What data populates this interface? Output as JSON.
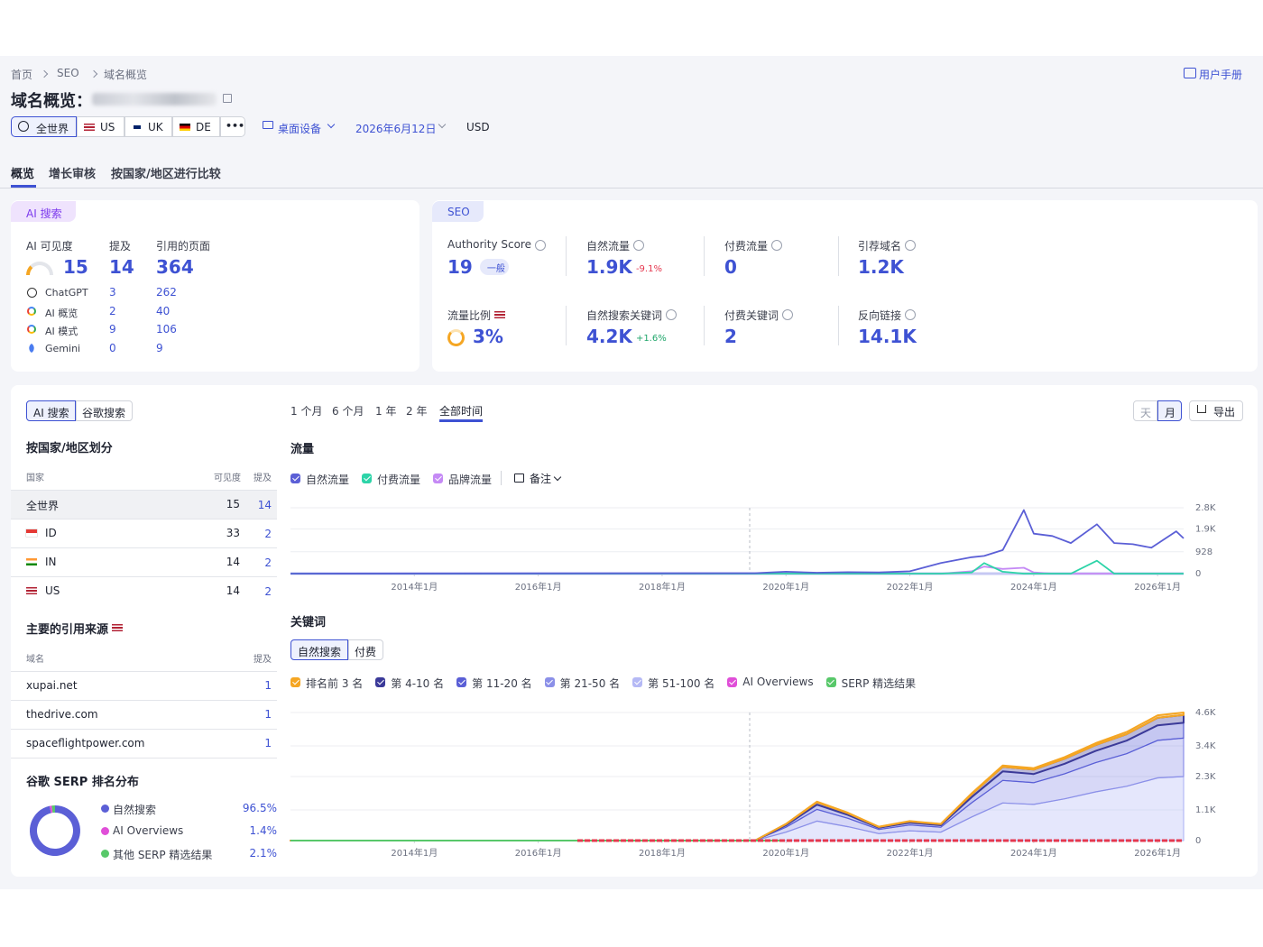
{
  "breadcrumb": [
    "首页",
    "SEO",
    "域名概览"
  ],
  "user_manual": "用户手册",
  "title": "域名概览：",
  "filters": {
    "regions": [
      "全世界",
      "US",
      "UK",
      "DE"
    ],
    "more": "•••",
    "device": "桌面设备",
    "date": "2026年6月12日",
    "currency": "USD"
  },
  "tabs": [
    "概览",
    "增长审核",
    "按国家/地区进行比较"
  ],
  "ai_card": {
    "label": "AI 搜索",
    "headers": [
      "AI 可见度",
      "提及",
      "引用的页面"
    ],
    "totals": [
      15,
      14,
      364
    ],
    "rows": [
      {
        "name": "ChatGPT",
        "mentions": 3,
        "pages": 262
      },
      {
        "name": "AI 概览",
        "mentions": 2,
        "pages": 40
      },
      {
        "name": "AI 模式",
        "mentions": 9,
        "pages": 106
      },
      {
        "name": "Gemini",
        "mentions": 0,
        "pages": 9
      }
    ]
  },
  "seo_card": {
    "label": "SEO",
    "metrics": [
      {
        "label": "Authority Score",
        "value": 19,
        "badge": "一般"
      },
      {
        "label": "自然流量",
        "value": "1.9K",
        "change": "-9.1%"
      },
      {
        "label": "付费流量",
        "value": 0
      },
      {
        "label": "引荐域名",
        "value": "1.2K"
      },
      {
        "label": "流量比例",
        "value": "3%"
      },
      {
        "label": "自然搜索关键词",
        "value": "4.2K",
        "change": "+1.6%"
      },
      {
        "label": "付费关键词",
        "value": 2
      },
      {
        "label": "反向链接",
        "value": "14.1K"
      }
    ]
  },
  "left": {
    "toggle": [
      "AI 搜索",
      "谷歌搜索"
    ],
    "country_title": "按国家/地区划分",
    "country_headers": [
      "国家",
      "可见度",
      "提及"
    ],
    "countries": [
      [
        "全世界",
        15,
        14
      ],
      [
        "ID",
        33,
        2
      ],
      [
        "IN",
        14,
        2
      ],
      [
        "US",
        14,
        2
      ]
    ],
    "sources_title": "主要的引用来源",
    "sources_headers": [
      "域名",
      "提及"
    ],
    "sources": [
      [
        "xupai.net",
        1
      ],
      [
        "thedrive.com",
        1
      ],
      [
        "spaceflightpower.com",
        1
      ]
    ],
    "serp_title": "谷歌 SERP 排名分布"
  },
  "periods": [
    "1 个月",
    "6 个月",
    "1 年",
    "2 年",
    "全部时间"
  ],
  "view": [
    "天",
    "月"
  ],
  "export": "导出",
  "chart_data": [
    {
      "type": "line",
      "title": "流量",
      "notes": "备注",
      "x": [
        2012,
        2019.5,
        2020,
        2020.5,
        2021,
        2021.5,
        2022,
        2022.5,
        2023,
        2023.2,
        2023.5,
        2023.84,
        2024,
        2024.3,
        2024.6,
        2025.02,
        2025.3,
        2025.6,
        2025.9,
        2026.3,
        2026.42
      ],
      "series": [
        {
          "name": "自然流量",
          "color": "#5b5fd6",
          "values": [
            0,
            20,
            80,
            40,
            60,
            50,
            100,
            450,
            700,
            750,
            1000,
            2700,
            1700,
            1600,
            1300,
            2100,
            1300,
            1250,
            1100,
            1800,
            1500
          ]
        },
        {
          "name": "付费流量",
          "color": "#2dd4a8",
          "values": [
            0,
            0,
            0,
            0,
            0,
            0,
            0,
            0,
            50,
            450,
            80,
            0,
            0,
            0,
            0,
            550,
            0,
            0,
            0,
            0,
            0
          ]
        },
        {
          "name": "品牌流量",
          "color": "#c58af5",
          "values": [
            0,
            0,
            0,
            0,
            0,
            0,
            0,
            0,
            100,
            300,
            200,
            250,
            50,
            0,
            0,
            0,
            0,
            0,
            0,
            0,
            0
          ]
        }
      ],
      "xlim": [
        2012,
        2026.42
      ],
      "xticks": [
        {
          "value": 2014,
          "label": "2014年1月"
        },
        {
          "value": 2016,
          "label": "2016年1月"
        },
        {
          "value": 2018,
          "label": "2018年1月"
        },
        {
          "value": 2020,
          "label": "2020年1月"
        },
        {
          "value": 2022,
          "label": "2022年1月"
        },
        {
          "value": 2024,
          "label": "2024年1月"
        },
        {
          "value": 2026,
          "label": "2026年1月"
        }
      ],
      "ylim": [
        0,
        2800
      ],
      "yticks": [
        0,
        928,
        {
          "value": 1900,
          "label": "1.9K"
        },
        {
          "value": 2800,
          "label": "2.8K"
        }
      ],
      "grid": true
    },
    {
      "type": "area",
      "stacked": true,
      "title": "关键词",
      "tabs": [
        "自然搜索",
        "付费"
      ],
      "x": [
        2012,
        2017.5,
        2019.5,
        2020,
        2020.5,
        2021,
        2021.5,
        2022,
        2022.5,
        2023,
        2023.5,
        2024,
        2024.5,
        2025,
        2025.5,
        2026,
        2026.42
      ],
      "series": [
        {
          "name": "排名前 3 名",
          "color": "#f5a623",
          "values": [
            0,
            0,
            0,
            12,
            28,
            20,
            10,
            14,
            12,
            34,
            54,
            52,
            60,
            70,
            78,
            90,
            92
          ]
        },
        {
          "name": "第 4-10 名",
          "color": "#3b3a99",
          "values": [
            0,
            0,
            0,
            36,
            84,
            60,
            30,
            42,
            36,
            102,
            162,
            156,
            180,
            210,
            234,
            270,
            276
          ]
        },
        {
          "name": "第 11-20 名",
          "color": "#5a5fd6",
          "values": [
            0,
            0,
            0,
            72,
            168,
            120,
            60,
            84,
            72,
            204,
            324,
            312,
            360,
            420,
            468,
            540,
            552
          ]
        },
        {
          "name": "第 21-50 名",
          "color": "#8b90e8",
          "values": [
            0,
            0,
            0,
            180,
            420,
            300,
            150,
            210,
            180,
            510,
            810,
            780,
            900,
            1050,
            1170,
            1350,
            1380
          ]
        },
        {
          "name": "第 51-100 名",
          "color": "#b5b9f5",
          "values": [
            0,
            0,
            0,
            300,
            700,
            500,
            250,
            350,
            300,
            850,
            1350,
            1300,
            1500,
            1750,
            1950,
            2250,
            2300
          ]
        }
      ],
      "legend_extra": [
        {
          "name": "AI Overviews",
          "color": "#e04fd8"
        },
        {
          "name": "SERP 精选结果",
          "color": "#58c86a"
        }
      ],
      "xlim": [
        2012,
        2026.42
      ],
      "xticks": [
        {
          "value": 2014,
          "label": "2014年1月"
        },
        {
          "value": 2016,
          "label": "2016年1月"
        },
        {
          "value": 2018,
          "label": "2018年1月"
        },
        {
          "value": 2020,
          "label": "2020年1月"
        },
        {
          "value": 2022,
          "label": "2022年1月"
        },
        {
          "value": 2024,
          "label": "2024年1月"
        },
        {
          "value": 2026,
          "label": "2026年1月"
        }
      ],
      "ylim": [
        0,
        4600
      ],
      "yticks": [
        0,
        {
          "value": 1100,
          "label": "1.1K"
        },
        {
          "value": 2300,
          "label": "2.3K"
        },
        {
          "value": 3400,
          "label": "3.4K"
        },
        {
          "value": 4600,
          "label": "4.6K"
        }
      ],
      "grid": true
    },
    {
      "type": "pie",
      "donut": true,
      "categories": [
        "自然搜索",
        "AI Overviews",
        "其他 SERP 精选结果"
      ],
      "values": [
        96.5,
        1.4,
        2.1
      ],
      "value_labels": [
        "96.5%",
        "1.4%",
        "2.1%"
      ],
      "colors": [
        "#5b5fd6",
        "#e04fd8",
        "#58c86a"
      ]
    }
  ]
}
